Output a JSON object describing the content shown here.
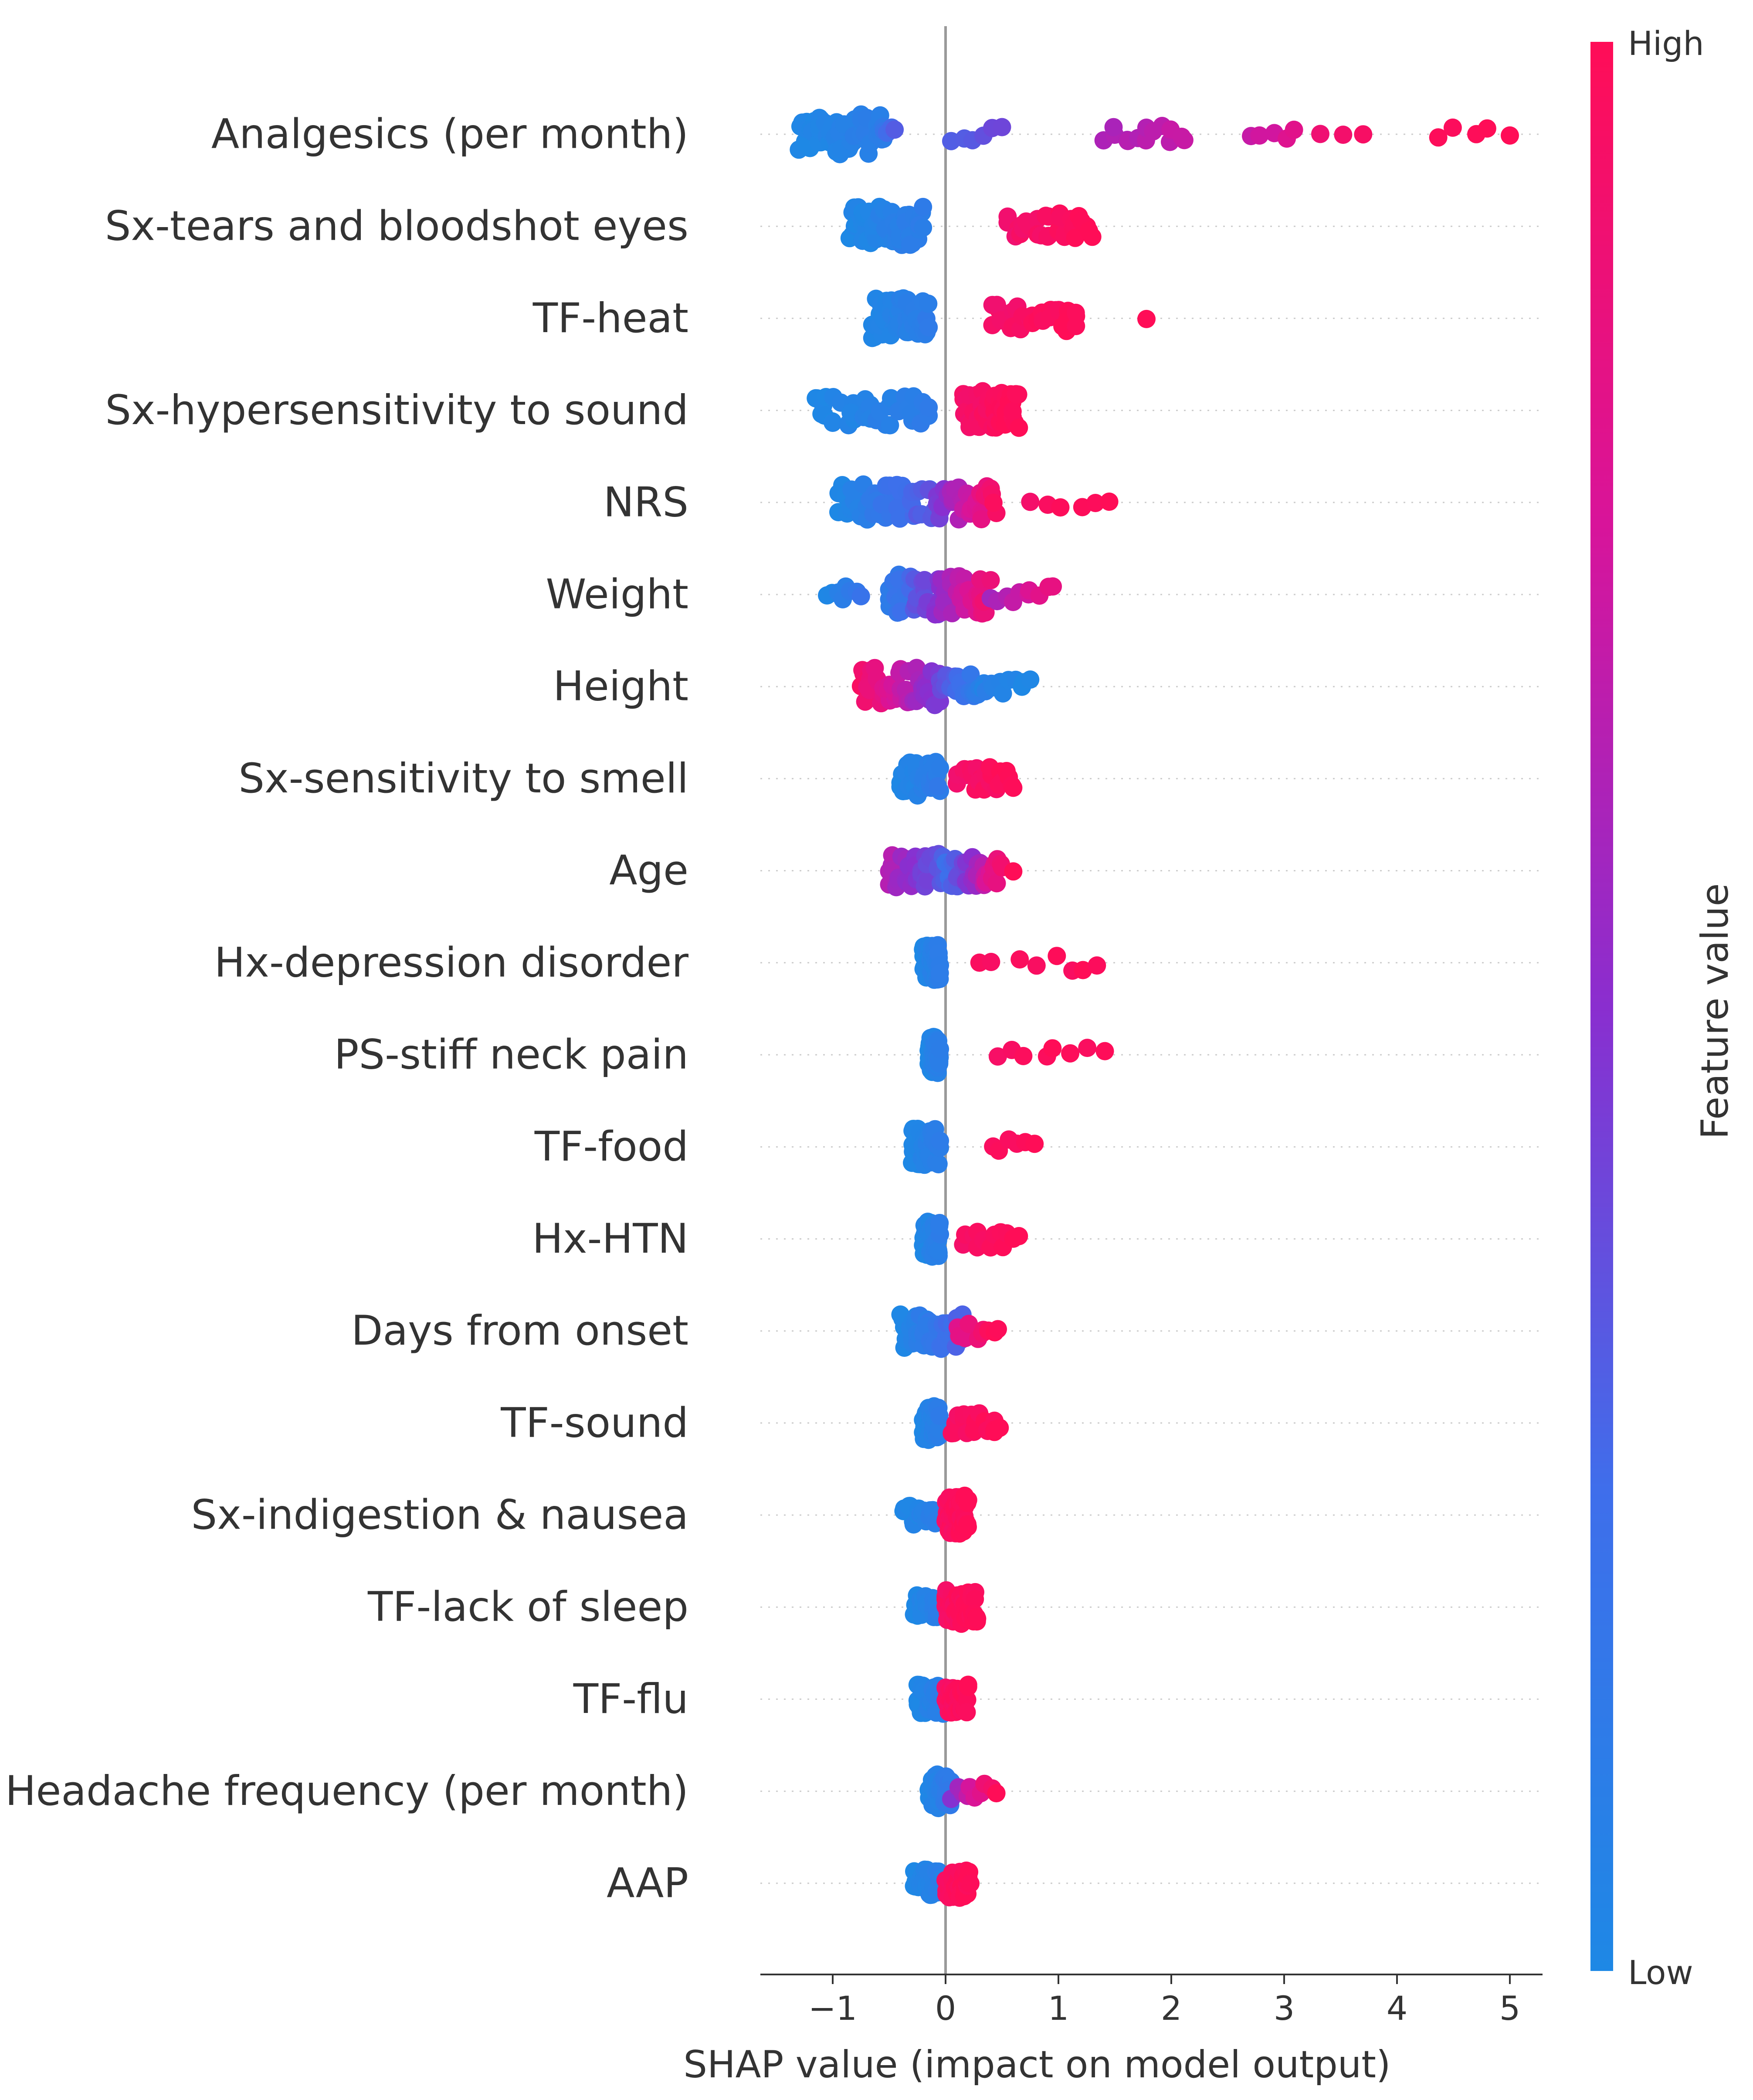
{
  "chart_data": {
    "type": "scatter",
    "subtype": "shap-beeswarm",
    "xlabel": "SHAP value (impact on model output)",
    "xlim": [
      -1.6,
      5.3
    ],
    "xticks": [
      -1,
      0,
      1,
      2,
      3,
      4,
      5
    ],
    "xtick_labels": [
      "−1",
      "0",
      "1",
      "2",
      "3",
      "4",
      "5"
    ],
    "colorbar": {
      "title": "Feature value",
      "high_label": "High",
      "low_label": "Low",
      "low_color": "#1E88E5",
      "high_color": "#FF0D57"
    },
    "features": [
      {
        "name": "Analgesics (per month)",
        "clusters": [
          {
            "min": -1.3,
            "max": -0.55,
            "n": 70,
            "v0": 0.0,
            "v1": 0.1
          },
          {
            "min": -0.55,
            "max": -0.45,
            "n": 4,
            "v0": 0.2,
            "v1": 0.3
          },
          {
            "min": 0.05,
            "max": 0.5,
            "n": 6,
            "v0": 0.3,
            "v1": 0.4
          },
          {
            "min": 1.4,
            "max": 2.15,
            "n": 14,
            "v0": 0.6,
            "v1": 0.7
          },
          {
            "min": 2.7,
            "max": 3.1,
            "n": 5,
            "v0": 0.7,
            "v1": 0.8
          },
          {
            "min": 3.3,
            "max": 3.7,
            "n": 3,
            "v0": 0.9,
            "v1": 0.95
          },
          {
            "min": 4.35,
            "max": 5.0,
            "n": 5,
            "v0": 1.0,
            "v1": 1.0
          }
        ]
      },
      {
        "name": "Sx-tears and bloodshot eyes",
        "clusters": [
          {
            "min": -0.85,
            "max": -0.2,
            "n": 60,
            "v0": 0.0,
            "v1": 0.12
          },
          {
            "min": 0.55,
            "max": 1.3,
            "n": 30,
            "v0": 0.92,
            "v1": 1.0
          }
        ]
      },
      {
        "name": "TF-heat",
        "clusters": [
          {
            "min": -0.65,
            "max": -0.15,
            "n": 60,
            "v0": 0.0,
            "v1": 0.12
          },
          {
            "min": 0.4,
            "max": 1.2,
            "n": 32,
            "v0": 0.92,
            "v1": 1.0
          },
          {
            "min": 1.78,
            "max": 1.78,
            "n": 1,
            "v0": 1.0,
            "v1": 1.0
          }
        ]
      },
      {
        "name": "Sx-hypersensitivity to sound",
        "clusters": [
          {
            "min": -1.15,
            "max": -0.15,
            "n": 40,
            "v0": 0.0,
            "v1": 0.12
          },
          {
            "min": 0.15,
            "max": 0.65,
            "n": 55,
            "v0": 0.92,
            "v1": 1.0
          }
        ]
      },
      {
        "name": "NRS",
        "clusters": [
          {
            "min": -0.95,
            "max": -0.1,
            "n": 50,
            "v0": 0.0,
            "v1": 0.35
          },
          {
            "min": -0.1,
            "max": 0.45,
            "n": 45,
            "v0": 0.4,
            "v1": 0.95
          },
          {
            "min": 0.75,
            "max": 1.45,
            "n": 6,
            "v0": 0.95,
            "v1": 1.0
          }
        ]
      },
      {
        "name": "Weight",
        "clusters": [
          {
            "min": -1.05,
            "max": -0.75,
            "n": 8,
            "v0": 0.0,
            "v1": 0.2
          },
          {
            "min": -0.5,
            "max": 0.4,
            "n": 80,
            "v0": 0.1,
            "v1": 0.9
          },
          {
            "min": 0.4,
            "max": 0.95,
            "n": 10,
            "v0": 0.6,
            "v1": 0.85
          }
        ]
      },
      {
        "name": "Height",
        "clusters": [
          {
            "min": -0.75,
            "max": -0.05,
            "n": 55,
            "v0": 0.95,
            "v1": 0.45
          },
          {
            "min": -0.05,
            "max": 0.35,
            "n": 25,
            "v0": 0.4,
            "v1": 0.05
          },
          {
            "min": 0.35,
            "max": 0.75,
            "n": 10,
            "v0": 0.1,
            "v1": 0.0
          }
        ]
      },
      {
        "name": "Sx-sensitivity to smell",
        "clusters": [
          {
            "min": -0.4,
            "max": -0.05,
            "n": 45,
            "v0": 0.0,
            "v1": 0.12
          },
          {
            "min": 0.1,
            "max": 0.6,
            "n": 25,
            "v0": 0.92,
            "v1": 1.0
          }
        ]
      },
      {
        "name": "Age",
        "clusters": [
          {
            "min": -0.5,
            "max": 0.0,
            "n": 45,
            "v0": 0.65,
            "v1": 0.3
          },
          {
            "min": 0.0,
            "max": 0.5,
            "n": 40,
            "v0": 0.2,
            "v1": 0.9
          },
          {
            "min": 0.6,
            "max": 0.6,
            "n": 1,
            "v0": 1.0,
            "v1": 1.0
          }
        ]
      },
      {
        "name": "Hx-depression disorder",
        "clusters": [
          {
            "min": -0.2,
            "max": -0.05,
            "n": 50,
            "v0": 0.0,
            "v1": 0.1
          },
          {
            "min": 0.3,
            "max": 1.4,
            "n": 8,
            "v0": 0.95,
            "v1": 1.0
          }
        ]
      },
      {
        "name": "PS-stiff neck pain",
        "clusters": [
          {
            "min": -0.15,
            "max": -0.05,
            "n": 50,
            "v0": 0.0,
            "v1": 0.1
          },
          {
            "min": 0.45,
            "max": 1.42,
            "n": 8,
            "v0": 0.95,
            "v1": 1.0
          }
        ]
      },
      {
        "name": "TF-food",
        "clusters": [
          {
            "min": -0.3,
            "max": -0.05,
            "n": 50,
            "v0": 0.0,
            "v1": 0.1
          },
          {
            "min": 0.4,
            "max": 0.8,
            "n": 6,
            "v0": 0.95,
            "v1": 1.0
          }
        ]
      },
      {
        "name": "Hx-HTN",
        "clusters": [
          {
            "min": -0.2,
            "max": -0.05,
            "n": 50,
            "v0": 0.0,
            "v1": 0.1
          },
          {
            "min": 0.15,
            "max": 0.65,
            "n": 14,
            "v0": 0.95,
            "v1": 1.0
          }
        ]
      },
      {
        "name": "Days from onset",
        "clusters": [
          {
            "min": -0.4,
            "max": 0.15,
            "n": 50,
            "v0": 0.0,
            "v1": 0.3
          },
          {
            "min": 0.1,
            "max": 0.48,
            "n": 10,
            "v0": 0.8,
            "v1": 1.0
          }
        ]
      },
      {
        "name": "TF-sound",
        "clusters": [
          {
            "min": -0.2,
            "max": -0.05,
            "n": 45,
            "v0": 0.0,
            "v1": 0.1
          },
          {
            "min": 0.05,
            "max": 0.48,
            "n": 20,
            "v0": 0.95,
            "v1": 1.0
          }
        ]
      },
      {
        "name": "Sx-indigestion & nausea",
        "clusters": [
          {
            "min": -0.38,
            "max": -0.05,
            "n": 20,
            "v0": 0.0,
            "v1": 0.1
          },
          {
            "min": 0.0,
            "max": 0.2,
            "n": 55,
            "v0": 0.95,
            "v1": 1.0
          }
        ]
      },
      {
        "name": "TF-lack of sleep",
        "clusters": [
          {
            "min": -0.28,
            "max": -0.05,
            "n": 25,
            "v0": 0.0,
            "v1": 0.1
          },
          {
            "min": 0.0,
            "max": 0.28,
            "n": 45,
            "v0": 0.95,
            "v1": 1.0
          }
        ]
      },
      {
        "name": "TF-flu",
        "clusters": [
          {
            "min": -0.25,
            "max": -0.02,
            "n": 35,
            "v0": 0.0,
            "v1": 0.1
          },
          {
            "min": 0.0,
            "max": 0.2,
            "n": 35,
            "v0": 0.95,
            "v1": 1.0
          }
        ]
      },
      {
        "name": "Headache frequency (per month)",
        "clusters": [
          {
            "min": -0.15,
            "max": 0.05,
            "n": 45,
            "v0": 0.0,
            "v1": 0.15
          },
          {
            "min": 0.05,
            "max": 0.45,
            "n": 10,
            "v0": 0.5,
            "v1": 1.0
          }
        ]
      },
      {
        "name": "AAP",
        "clusters": [
          {
            "min": -0.28,
            "max": -0.02,
            "n": 35,
            "v0": 0.0,
            "v1": 0.1
          },
          {
            "min": 0.0,
            "max": 0.22,
            "n": 35,
            "v0": 0.95,
            "v1": 1.0
          }
        ]
      }
    ]
  }
}
